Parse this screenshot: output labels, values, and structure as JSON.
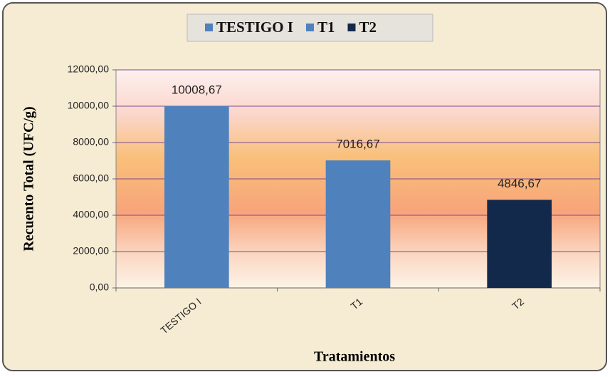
{
  "chart_data": {
    "type": "bar",
    "categories": [
      "TESTIGO I",
      "T1",
      "T2"
    ],
    "values": [
      10008.67,
      7016.67,
      4846.67
    ],
    "value_labels": [
      "10008,67",
      "7016,67",
      "4846,67"
    ],
    "colors": [
      "#4f81bd",
      "#4f81bd",
      "#13294b"
    ],
    "x_label": "Tratamientos",
    "y_label": "Recuento Total (UFC/g)",
    "ylim": [
      0,
      12000
    ],
    "yticks": [
      {
        "value": 0,
        "label": "0,00"
      },
      {
        "value": 2000,
        "label": "2000,00"
      },
      {
        "value": 4000,
        "label": "4000,00"
      },
      {
        "value": 6000,
        "label": "6000,00"
      },
      {
        "value": 8000,
        "label": "8000,00"
      },
      {
        "value": 10000,
        "label": "10000,00"
      },
      {
        "value": 12000,
        "label": "12000,00"
      }
    ],
    "grid": true,
    "legend": "top"
  }
}
